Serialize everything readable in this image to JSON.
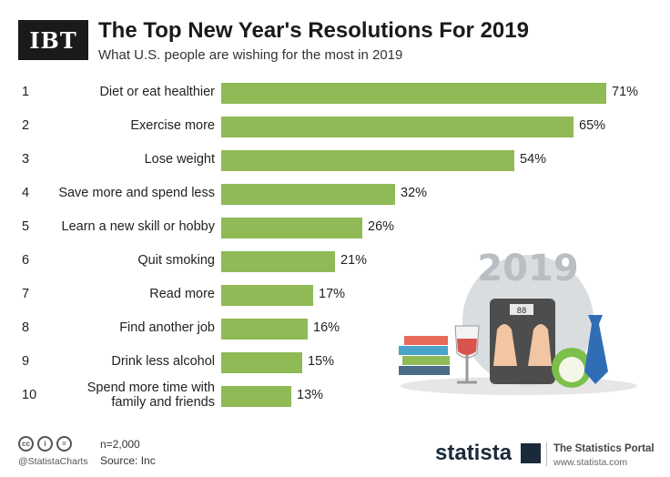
{
  "header": {
    "logo_text": "IBT",
    "title": "The Top New Year's Resolutions For 2019",
    "subtitle": "What U.S. people are wishing for the most in 2019"
  },
  "chart_data": {
    "type": "bar",
    "orientation": "horizontal",
    "title": "The Top New Year's Resolutions For 2019",
    "subtitle": "What U.S. people are wishing for the most in 2019",
    "ranks": [
      "1",
      "2",
      "3",
      "4",
      "5",
      "6",
      "7",
      "8",
      "9",
      "10"
    ],
    "categories": [
      "Diet or eat healthier",
      "Exercise more",
      "Lose weight",
      "Save more and spend less",
      "Learn a new skill or hobby",
      "Quit smoking",
      "Read more",
      "Find another job",
      "Drink less alcohol",
      "Spend more time with family and friends"
    ],
    "category_lines": [
      [
        "Diet or eat healthier"
      ],
      [
        "Exercise more"
      ],
      [
        "Lose weight"
      ],
      [
        "Save more and spend less"
      ],
      [
        "Learn a new skill or hobby"
      ],
      [
        "Quit smoking"
      ],
      [
        "Read more"
      ],
      [
        "Find another job"
      ],
      [
        "Drink less alcohol"
      ],
      [
        "Spend more time with",
        "family and friends"
      ]
    ],
    "values": [
      71,
      65,
      54,
      32,
      26,
      21,
      17,
      16,
      15,
      13
    ],
    "value_labels": [
      "71%",
      "65%",
      "54%",
      "32%",
      "26%",
      "21%",
      "17%",
      "16%",
      "15%",
      "13%"
    ],
    "unit": "%",
    "xlim": [
      0,
      71
    ],
    "grid": false,
    "bar_color": "#8fba55"
  },
  "illustration": {
    "year_text": "2019",
    "scale_readout": "88"
  },
  "footer": {
    "handle": "@StatistaCharts",
    "sample": "n=2,000",
    "source": "Source: Inc",
    "brand": "statista",
    "portal": "The Statistics Portal",
    "portal_url": "www.statista.com",
    "license_icons": [
      "cc-icon",
      "attribution-icon",
      "no-derivatives-icon"
    ]
  }
}
